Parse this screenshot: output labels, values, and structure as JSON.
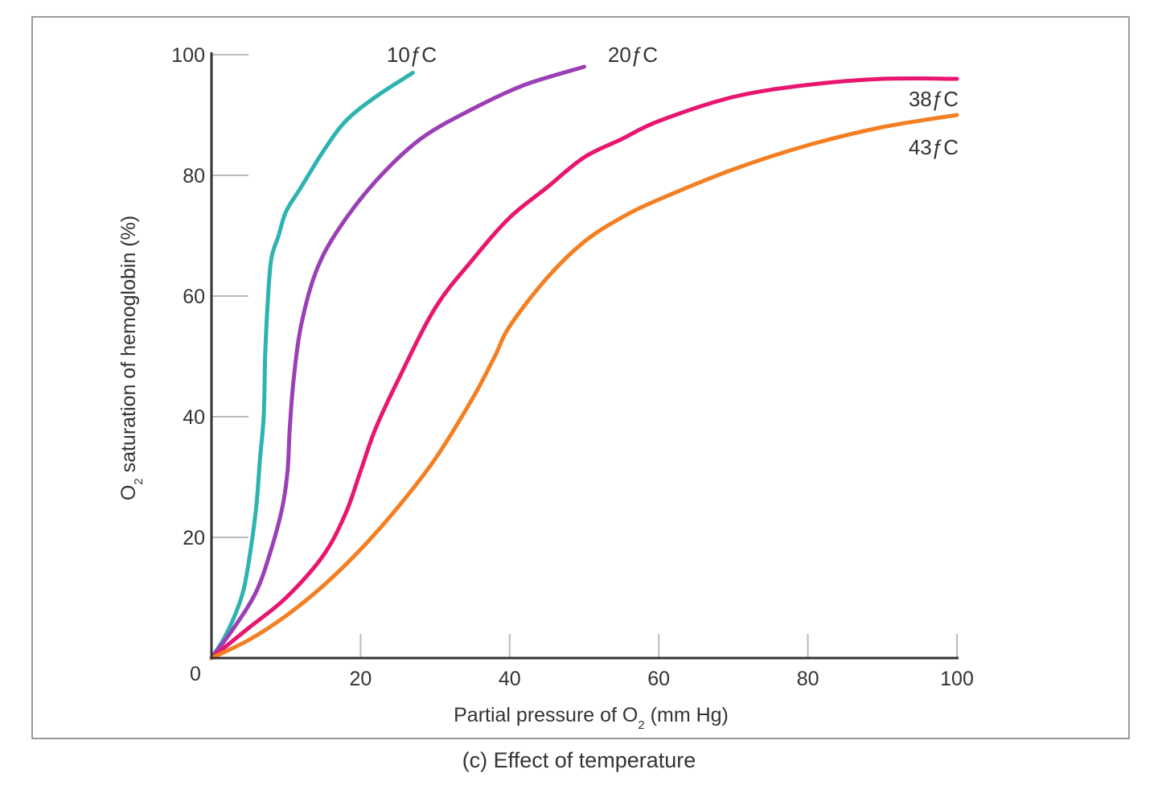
{
  "chart_data": {
    "type": "line",
    "caption": "(c) Effect of temperature",
    "xlabel": {
      "pre": "Partial pressure of O",
      "sub": "2",
      "post": " (mm Hg)"
    },
    "ylabel": {
      "pre": "O",
      "sub": "2",
      "post": " saturation of hemoglobin (%)"
    },
    "xlim": [
      0,
      100
    ],
    "ylim": [
      0,
      100
    ],
    "xticks": [
      20,
      40,
      60,
      80,
      100
    ],
    "yticks": [
      20,
      40,
      60,
      80,
      100
    ],
    "origin_label": "0",
    "grid": false,
    "colors": {
      "axis": "#333333",
      "tick": "#bbbbbb"
    },
    "series": [
      {
        "name": "10ƒC",
        "color": "#2db3b0",
        "x": [
          0,
          2,
          4,
          5,
          6,
          6.5,
          7,
          7.2,
          7.5,
          8,
          9,
          10,
          12,
          15,
          18,
          22,
          27
        ],
        "y": [
          0,
          4,
          10,
          16,
          25,
          33,
          40,
          50,
          58,
          66,
          70,
          74,
          78,
          84,
          89,
          93,
          97
        ]
      },
      {
        "name": "20ƒC",
        "color": "#9b3fb5",
        "x": [
          0,
          3,
          6,
          8,
          9.5,
          10.2,
          10.5,
          11,
          12,
          14,
          17,
          22,
          28,
          35,
          42,
          50
        ],
        "y": [
          0,
          5,
          11,
          18,
          25,
          31,
          38,
          46,
          55,
          64,
          71,
          79,
          86,
          91,
          95,
          98
        ]
      },
      {
        "name": "38ƒC",
        "color": "#e8166e",
        "x": [
          0,
          5,
          10,
          15,
          18,
          20,
          22,
          25,
          30,
          35,
          40,
          45,
          50,
          55,
          60,
          70,
          80,
          90,
          100
        ],
        "y": [
          0,
          5,
          10,
          17,
          24,
          31,
          38,
          46,
          58,
          66,
          73,
          78,
          83,
          86,
          89,
          93,
          95,
          96,
          96
        ]
      },
      {
        "name": "43ƒC",
        "color": "#f47f22",
        "x": [
          0,
          5,
          10,
          15,
          20,
          25,
          30,
          35,
          38,
          40,
          45,
          50,
          55,
          60,
          70,
          80,
          90,
          100
        ],
        "y": [
          0,
          3,
          7,
          12,
          18,
          25,
          33,
          43,
          50,
          55,
          63,
          69,
          73,
          76,
          81,
          85,
          88,
          90
        ]
      }
    ]
  }
}
